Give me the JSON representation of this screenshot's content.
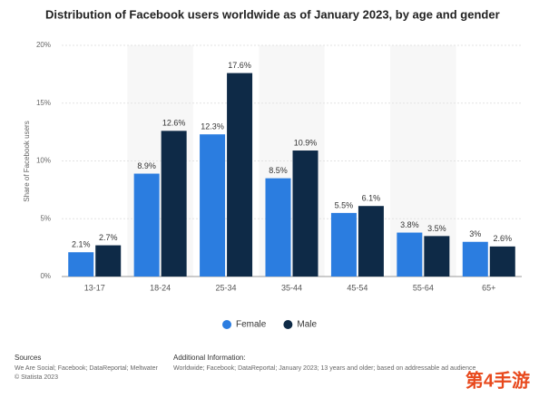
{
  "chart_data": {
    "type": "bar",
    "title": "Distribution of Facebook users worldwide as of January 2023, by age and gender",
    "y_label": "Share of Facebook users",
    "categories": [
      "13-17",
      "18-24",
      "25-34",
      "35-44",
      "45-54",
      "55-64",
      "65+"
    ],
    "series": [
      {
        "name": "Female",
        "color": "#2b7de0",
        "values": [
          2.1,
          8.9,
          12.3,
          8.5,
          5.5,
          3.8,
          3
        ],
        "value_labels": [
          "2.1%",
          "8.9%",
          "12.3%",
          "8.5%",
          "5.5%",
          "3.8%",
          "3%"
        ]
      },
      {
        "name": "Male",
        "color": "#0e2a47",
        "values": [
          2.7,
          12.6,
          17.6,
          10.9,
          6.1,
          3.5,
          2.6
        ],
        "value_labels": [
          "2.7%",
          "12.6%",
          "17.6%",
          "10.9%",
          "6.1%",
          "3.5%",
          "2.6%"
        ]
      }
    ],
    "ylim": [
      0,
      20
    ],
    "yticks": [
      {
        "value": 0,
        "label": "0%"
      },
      {
        "value": 5,
        "label": "5%"
      },
      {
        "value": 10,
        "label": "10%"
      },
      {
        "value": 15,
        "label": "15%"
      },
      {
        "value": 20,
        "label": "20%"
      }
    ],
    "grid": true,
    "legend": "bottom"
  },
  "footer": {
    "sources_title": "Sources",
    "sources": "We Are Social; Facebook; DataReportal; Meltwater",
    "copyright": "© Statista 2023",
    "info_title": "Additional Information:",
    "info": "Worldwide; Facebook; DataReportal; January 2023; 13 years and older; based on addressable ad audience"
  },
  "watermark": "第4手游"
}
